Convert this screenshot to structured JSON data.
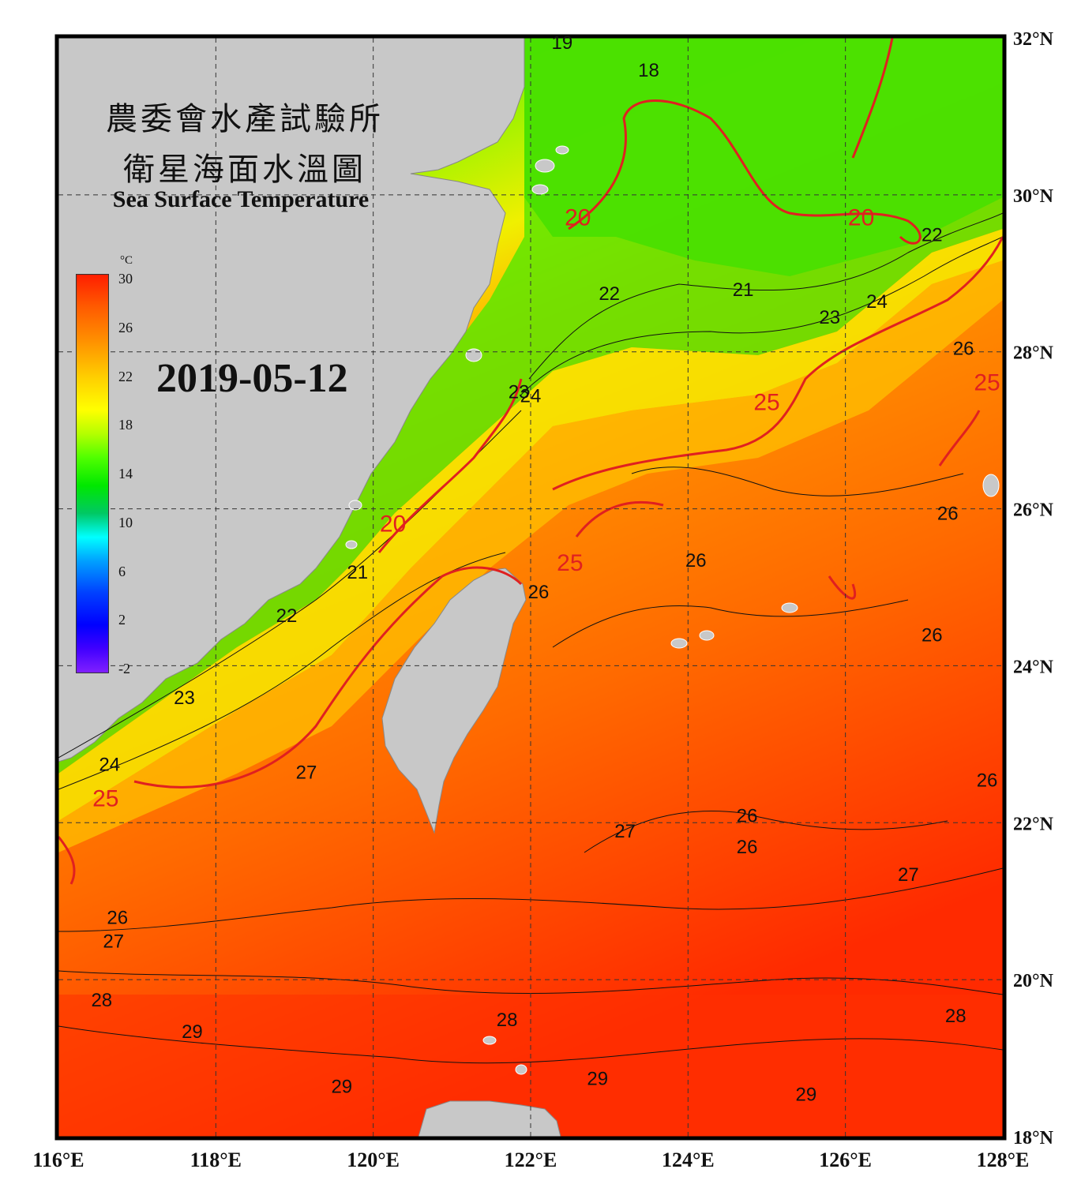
{
  "title": {
    "line1": "農委會水產試驗所",
    "line2": "衛星海面水溫圖",
    "english": "Sea Surface Temperature"
  },
  "date": "2019-05-12",
  "colorbar": {
    "unit": "°C",
    "ticks": [
      "30",
      "26",
      "22",
      "18",
      "14",
      "10",
      "6",
      "2",
      "-2"
    ]
  },
  "axes": {
    "lon_labels": [
      "116°E",
      "118°E",
      "120°E",
      "122°E",
      "124°E",
      "126°E",
      "128°E"
    ],
    "lat_labels": [
      "32°N",
      "30°N",
      "28°N",
      "26°N",
      "24°N",
      "22°N",
      "20°N",
      "18°N"
    ],
    "lon_range": [
      116,
      128
    ],
    "lat_range": [
      18,
      32
    ],
    "grid": "dashed"
  },
  "contour_labels": [
    {
      "text": "19",
      "lon": 122.4,
      "lat": 31.95
    },
    {
      "text": "18",
      "lon": 123.5,
      "lat": 31.6
    },
    {
      "text": "20",
      "lon": 122.6,
      "lat": 29.7
    },
    {
      "text": "20",
      "lon": 126.2,
      "lat": 29.7
    },
    {
      "text": "22",
      "lon": 127.1,
      "lat": 29.5
    },
    {
      "text": "22",
      "lon": 123.0,
      "lat": 28.75
    },
    {
      "text": "21",
      "lon": 124.7,
      "lat": 28.8
    },
    {
      "text": "23",
      "lon": 125.8,
      "lat": 28.45
    },
    {
      "text": "24",
      "lon": 126.4,
      "lat": 28.65
    },
    {
      "text": "26",
      "lon": 127.5,
      "lat": 28.05
    },
    {
      "text": "25",
      "lon": 127.8,
      "lat": 27.6
    },
    {
      "text": "23",
      "lon": 121.85,
      "lat": 27.5
    },
    {
      "text": "24",
      "lon": 122.0,
      "lat": 27.45
    },
    {
      "text": "25",
      "lon": 125.0,
      "lat": 27.35
    },
    {
      "text": "20",
      "lon": 120.25,
      "lat": 25.8
    },
    {
      "text": "21",
      "lon": 119.8,
      "lat": 25.2
    },
    {
      "text": "26",
      "lon": 127.3,
      "lat": 25.95
    },
    {
      "text": "25",
      "lon": 122.5,
      "lat": 25.3
    },
    {
      "text": "26",
      "lon": 124.1,
      "lat": 25.35
    },
    {
      "text": "26",
      "lon": 122.1,
      "lat": 24.95
    },
    {
      "text": "22",
      "lon": 118.9,
      "lat": 24.65
    },
    {
      "text": "26",
      "lon": 127.1,
      "lat": 24.4
    },
    {
      "text": "23",
      "lon": 117.6,
      "lat": 23.6
    },
    {
      "text": "24",
      "lon": 116.65,
      "lat": 22.75
    },
    {
      "text": "27",
      "lon": 119.15,
      "lat": 22.65
    },
    {
      "text": "26",
      "lon": 127.8,
      "lat": 22.55
    },
    {
      "text": "25",
      "lon": 116.6,
      "lat": 22.3
    },
    {
      "text": "26",
      "lon": 124.75,
      "lat": 22.1
    },
    {
      "text": "27",
      "lon": 123.2,
      "lat": 21.9
    },
    {
      "text": "26",
      "lon": 124.75,
      "lat": 21.7
    },
    {
      "text": "27",
      "lon": 126.8,
      "lat": 21.35
    },
    {
      "text": "26",
      "lon": 116.75,
      "lat": 20.8
    },
    {
      "text": "27",
      "lon": 116.7,
      "lat": 20.5
    },
    {
      "text": "28",
      "lon": 116.55,
      "lat": 19.75
    },
    {
      "text": "29",
      "lon": 117.7,
      "lat": 19.35
    },
    {
      "text": "28",
      "lon": 121.7,
      "lat": 19.5
    },
    {
      "text": "28",
      "lon": 127.4,
      "lat": 19.55
    },
    {
      "text": "29",
      "lon": 122.85,
      "lat": 18.75
    },
    {
      "text": "29",
      "lon": 119.6,
      "lat": 18.65
    },
    {
      "text": "29",
      "lon": 125.5,
      "lat": 18.55
    }
  ]
}
